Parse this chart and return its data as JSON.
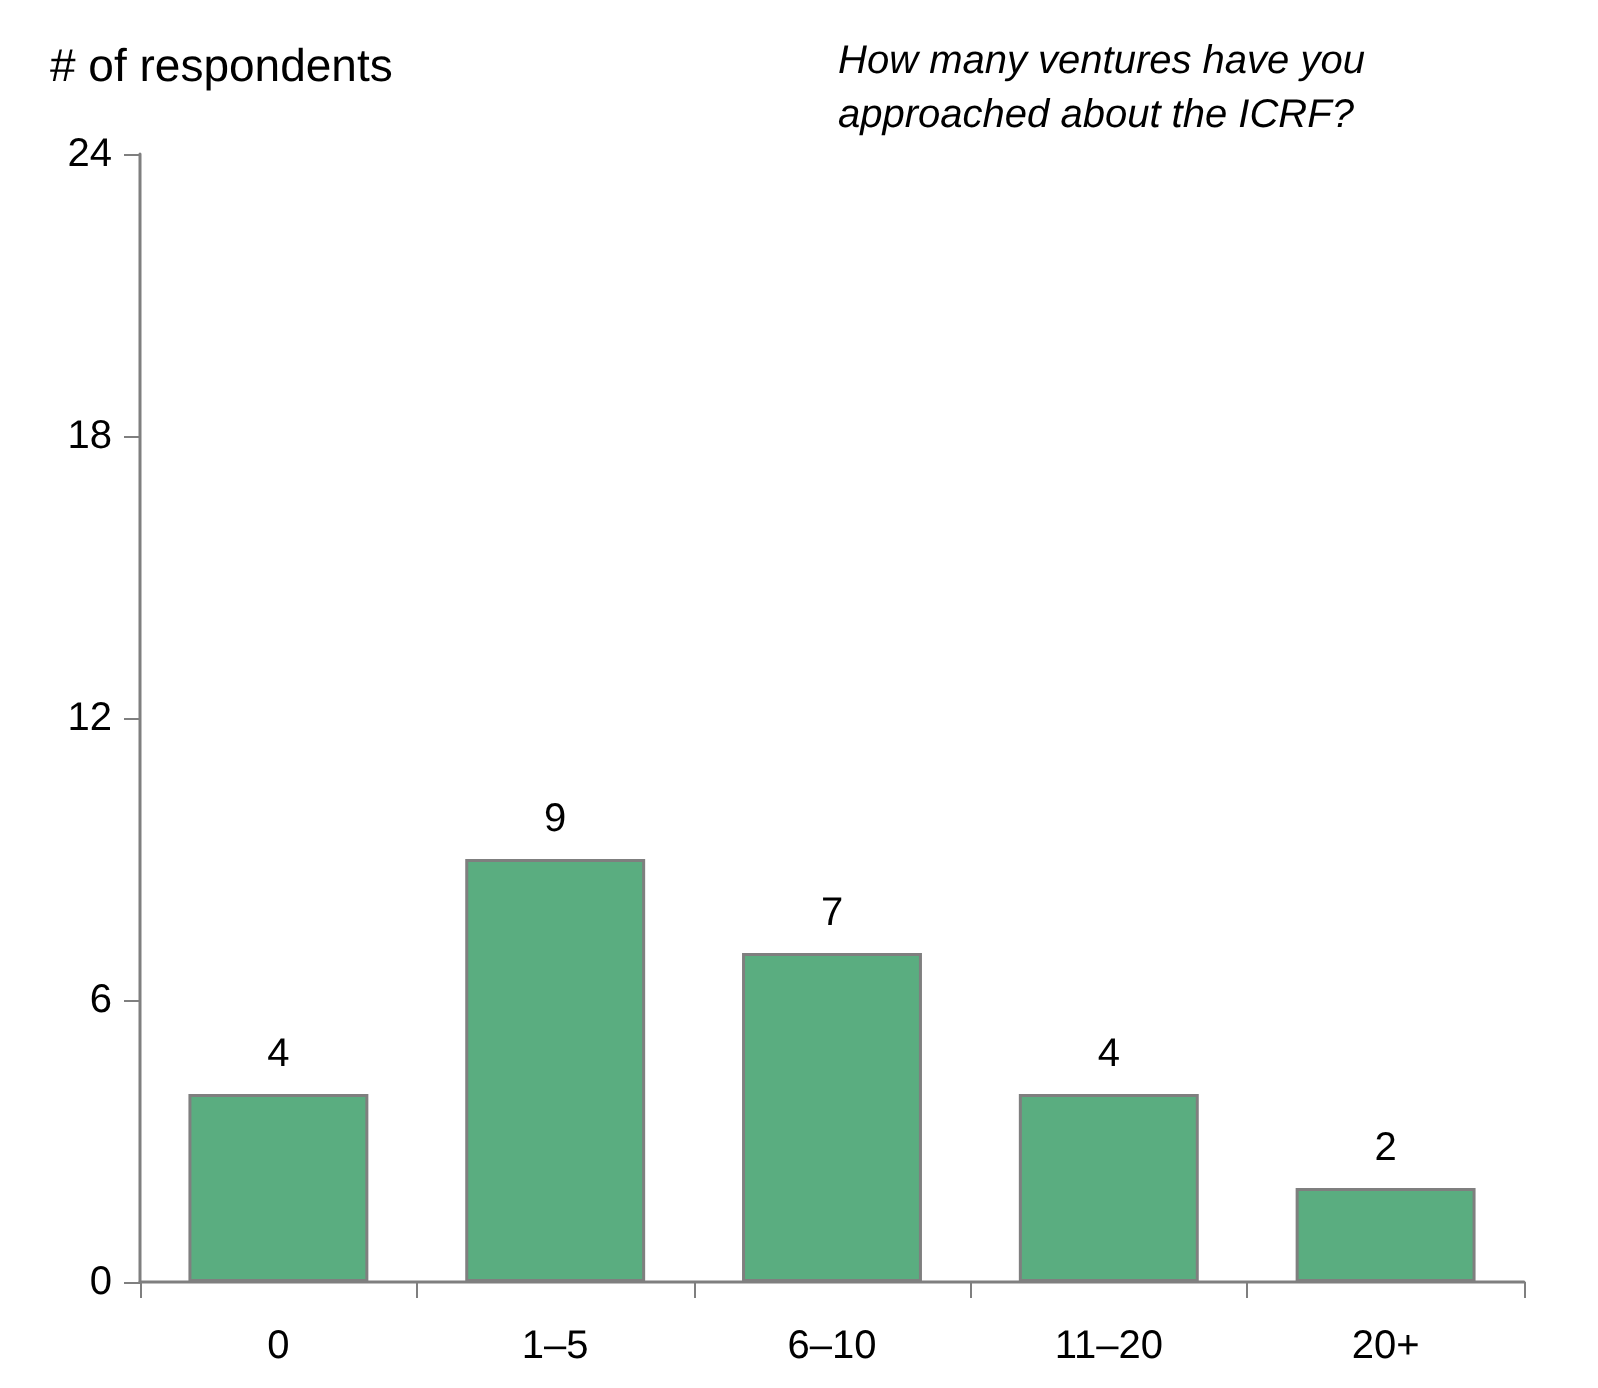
{
  "chart_data": {
    "type": "bar",
    "title": "How many ventures have you approached about the ICRF?",
    "ylabel": "# of respondents",
    "categories": [
      "0",
      "1–5",
      "6–10",
      "11–20",
      "20+"
    ],
    "values": [
      4,
      9,
      7,
      4,
      2
    ],
    "color": "#5aad80",
    "ylim": [
      0,
      24
    ],
    "yticks": [
      0,
      6,
      12,
      18,
      24
    ],
    "grid": false,
    "data_labels": true
  }
}
